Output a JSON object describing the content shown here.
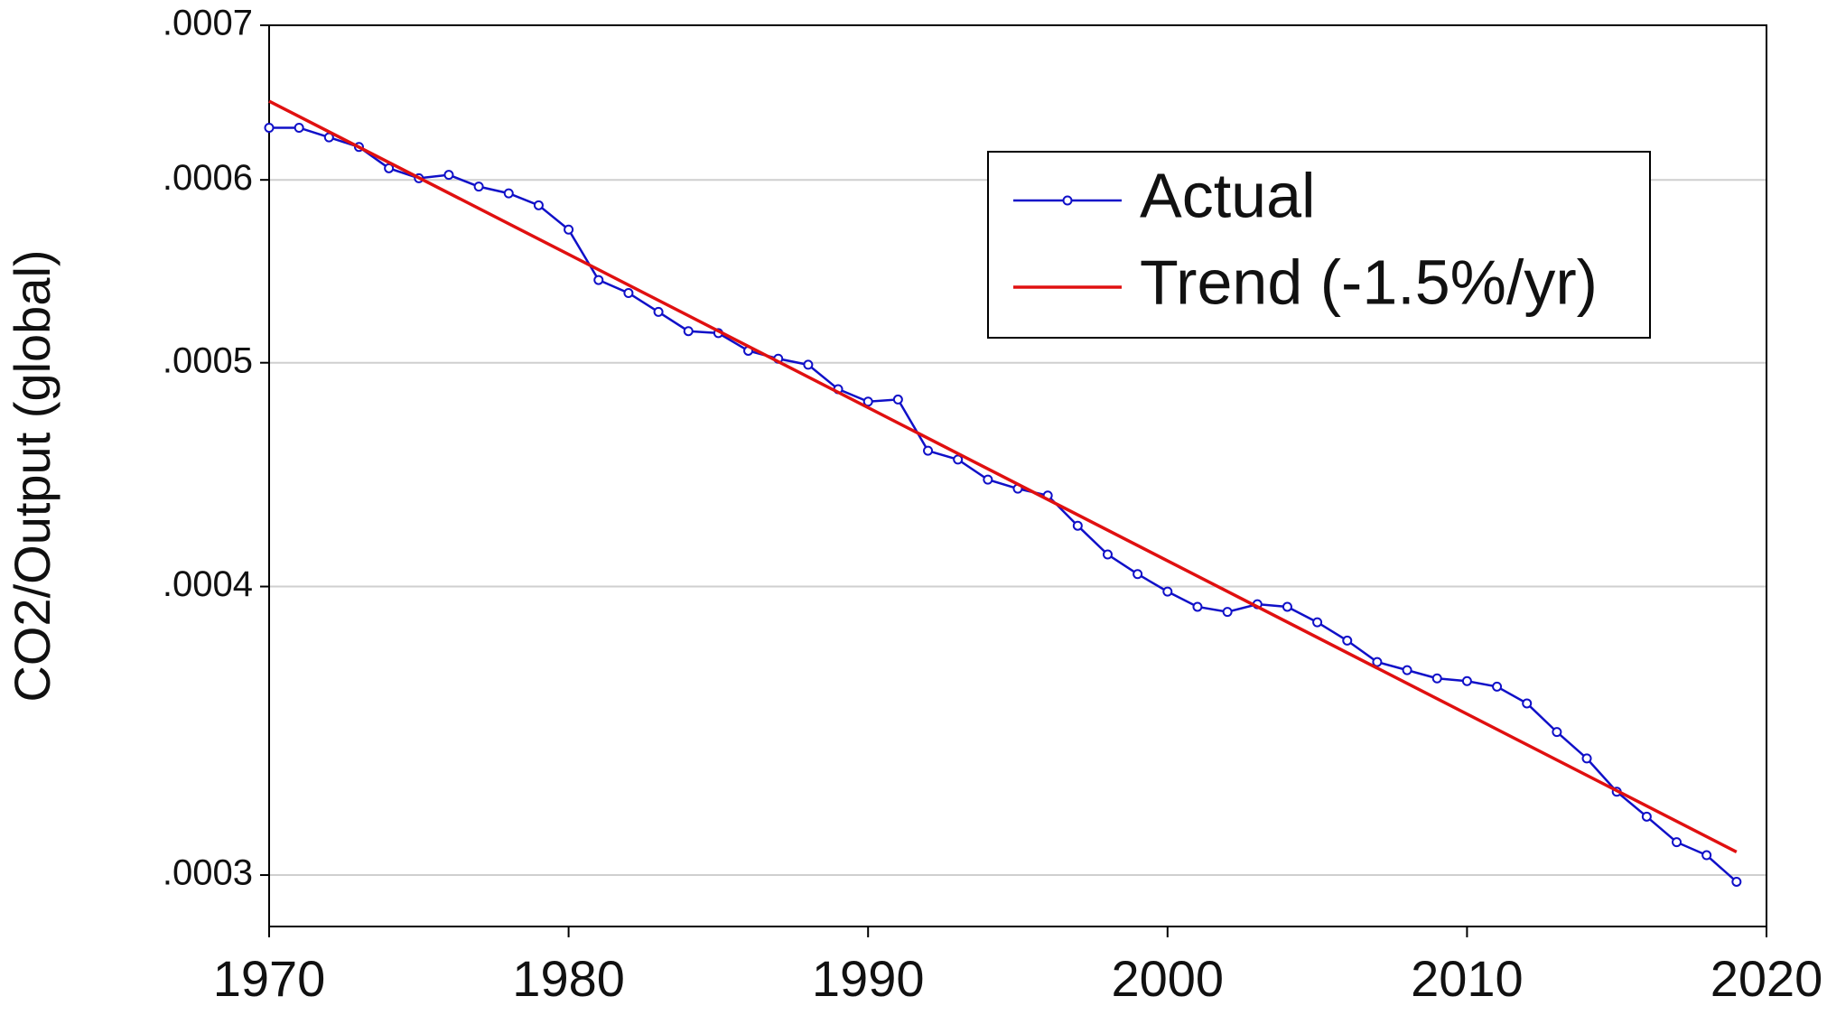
{
  "chart_data": {
    "type": "line",
    "y_label": "CO2/Output (global)",
    "x": [
      1970,
      1971,
      1972,
      1973,
      1974,
      1975,
      1976,
      1977,
      1978,
      1979,
      1980,
      1981,
      1982,
      1983,
      1984,
      1985,
      1986,
      1987,
      1988,
      1989,
      1990,
      1991,
      1992,
      1993,
      1994,
      1995,
      1996,
      1997,
      1998,
      1999,
      2000,
      2001,
      2002,
      2003,
      2004,
      2005,
      2006,
      2007,
      2008,
      2009,
      2010,
      2011,
      2012,
      2013,
      2014,
      2015,
      2016,
      2017,
      2018,
      2019
    ],
    "series": [
      {
        "name": "Actual",
        "color": "#1010c8",
        "markers": true,
        "values": [
          0.000632,
          0.000632,
          0.000626,
          0.00062,
          0.000607,
          0.000601,
          0.000603,
          0.000596,
          0.000592,
          0.000585,
          0.000571,
          0.000543,
          0.000536,
          0.000526,
          0.000516,
          0.000515,
          0.000506,
          0.000502,
          0.000499,
          0.000487,
          0.000481,
          0.000482,
          0.000458,
          0.000454,
          0.000445,
          0.000441,
          0.000438,
          0.000425,
          0.000413,
          0.000405,
          0.000398,
          0.000392,
          0.00039,
          0.000393,
          0.000392,
          0.000386,
          0.000379,
          0.000371,
          0.000368,
          0.000365,
          0.000364,
          0.000362,
          0.000356,
          0.000346,
          0.000337,
          0.000326,
          0.000318,
          0.00031,
          0.000306,
          0.000298
        ]
      },
      {
        "name": "Trend (-1.5%/yr)",
        "color": "#e01010",
        "markers": false,
        "x": [
          1970,
          2019
        ],
        "values": [
          0.000649,
          0.000307
        ]
      }
    ],
    "xlim": [
      1970,
      2020
    ],
    "xticks": [
      1970,
      1980,
      1990,
      2000,
      2010,
      2020
    ],
    "ylim": [
      0.000285,
      0.0007
    ],
    "y_log": true,
    "yticks": [
      {
        "value": 0.0003,
        "label": ".0003"
      },
      {
        "value": 0.0004,
        "label": ".0004"
      },
      {
        "value": 0.0005,
        "label": ".0005"
      },
      {
        "value": 0.0006,
        "label": ".0006"
      },
      {
        "value": 0.0007,
        "label": ".0007"
      }
    ],
    "grid": true,
    "legend": "upper right"
  }
}
